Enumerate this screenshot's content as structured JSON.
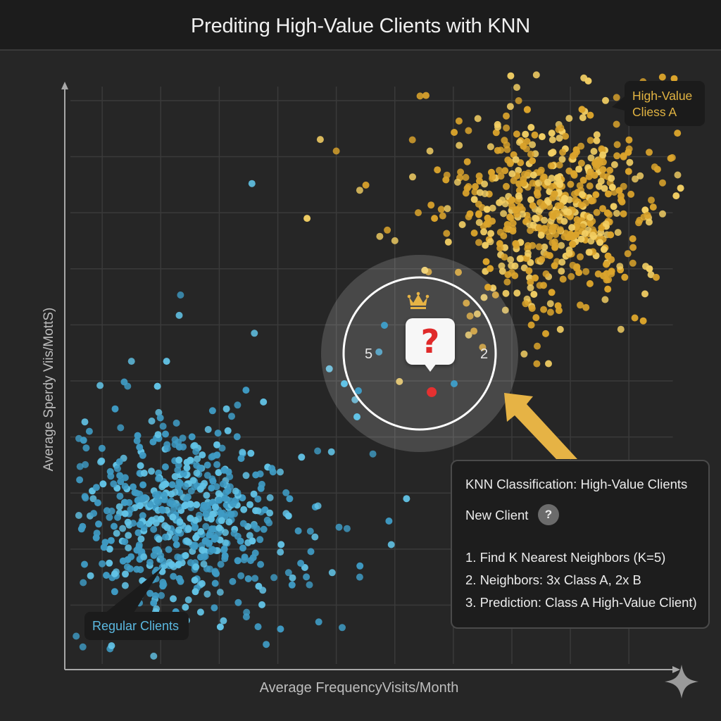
{
  "header": {
    "title": "Prediting High-Value Clients with KNN"
  },
  "colors": {
    "class_a": "#e2a92e",
    "class_b": "#4fb0d8",
    "query": "#e53030",
    "arrow": "#e6b345",
    "grid": "#3a3a3a",
    "axis": "#a8a8a8"
  },
  "chart_data": {
    "type": "scatter",
    "title": "Prediting High-Value Clients with KNN",
    "xlabel": "Average FrequencyVisits/Month",
    "ylabel": "Average Sperdy Viis/MottS)",
    "xlim": [
      0.36,
      10.9
    ],
    "ylim": [
      -0.15,
      10.4
    ],
    "grid": true,
    "tick_labels": "none",
    "series": [
      {
        "name": "High-Value Cliess A",
        "label_color_key": "class_a",
        "center": [
          8.75,
          8.1
        ],
        "spread": [
          1.05,
          1.0
        ],
        "count": 620,
        "seed": 11,
        "tail_outliers": [
          [
            6.3,
            9.3
          ],
          [
            6.6,
            9.1
          ],
          [
            7.1,
            9.2
          ],
          [
            5.0,
            9.1
          ],
          [
            4.5,
            7.9
          ],
          [
            5.4,
            8.4
          ],
          [
            6.0,
            7.5
          ],
          [
            6.4,
            8.0
          ],
          [
            9.6,
            10.0
          ],
          [
            7.5,
            5.6
          ]
        ]
      },
      {
        "name": "Regular Clients",
        "label_color_key": "class_b",
        "center": [
          2.45,
          2.45
        ],
        "spread": [
          1.0,
          1.05
        ],
        "count": 620,
        "seed": 29,
        "tail_outliers": [
          [
            3.6,
            5.85
          ],
          [
            1.5,
            5.35
          ],
          [
            2.1,
            5.35
          ],
          [
            0.9,
            3.1
          ],
          [
            0.6,
            2.6
          ],
          [
            6.2,
            2.9
          ],
          [
            5.9,
            2.5
          ],
          [
            5.4,
            1.5
          ],
          [
            4.7,
            0.7
          ],
          [
            5.1,
            0.6
          ]
        ]
      }
    ],
    "query_point": {
      "name": "New Client",
      "x": 6.63,
      "y": 4.8
    },
    "neighbors_left_count": "5",
    "neighbors_right_count": "2"
  },
  "annotations": {
    "class_a_label_line1": "High-Value",
    "class_a_label_line2": "Cliess A",
    "class_b_label": "Regular Clients"
  },
  "info_panel": {
    "title": "KNN Classification: High-Value Clients",
    "new_client": "New Client",
    "help_icon": "?",
    "steps": [
      "1. Find K Nearest Neighbors (K=5)",
      "2. Neighbors: 3x Class A, 2x B",
      "3. Prediction: Class A High-Value Client)"
    ]
  },
  "query_marker": {
    "symbol": "?",
    "crown_icon": "crown-icon"
  },
  "footer": {
    "sparkle_icon": "sparkle-icon"
  }
}
